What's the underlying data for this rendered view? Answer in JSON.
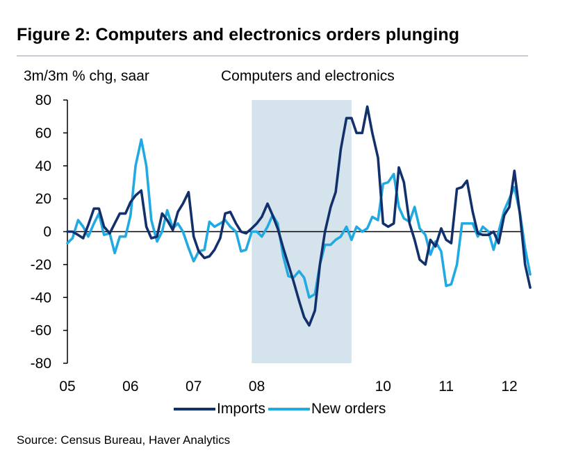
{
  "figure": {
    "title": "Figure 2: Computers and electronics orders plunging",
    "source": "Source: Census Bureau, Haver Analytics"
  },
  "chart_data": {
    "type": "line",
    "title": "Computers and electronics",
    "ylabel": "3m/3m % chg, saar",
    "xlabel": "",
    "ylim": [
      -80,
      80
    ],
    "yticks": [
      80,
      60,
      40,
      20,
      0,
      -20,
      -40,
      -60,
      -80
    ],
    "ytick_labels": [
      "80",
      "60",
      "40",
      "20",
      "0",
      "-20",
      "-40",
      "-60",
      "-80"
    ],
    "xlim": [
      2005.0,
      2012.0
    ],
    "xticks": [
      2005,
      2006,
      2007,
      2008,
      2009,
      2010,
      2011,
      2012
    ],
    "xtick_labels": [
      "05",
      "06",
      "07",
      "08",
      "",
      "10",
      "11",
      "12"
    ],
    "grid": false,
    "legend_position": "bottom-center",
    "shaded_regions": [
      {
        "x_start": 2007.92,
        "x_end": 2009.5,
        "color": "#d5e3ec"
      }
    ],
    "colors": {
      "Imports": "#12306b",
      "New orders": "#21a9e1",
      "shade": "#d5e3ec"
    },
    "series": [
      {
        "name": "Imports",
        "color": "#12306b",
        "points": [
          [
            2005.0,
            0
          ],
          [
            2005.08,
            0
          ],
          [
            2005.17,
            -2
          ],
          [
            2005.25,
            -4
          ],
          [
            2005.33,
            4
          ],
          [
            2005.42,
            14
          ],
          [
            2005.5,
            14
          ],
          [
            2005.58,
            3
          ],
          [
            2005.67,
            -1
          ],
          [
            2005.75,
            5
          ],
          [
            2005.83,
            11
          ],
          [
            2005.92,
            11
          ],
          [
            2006.0,
            18
          ],
          [
            2006.08,
            22
          ],
          [
            2006.17,
            25
          ],
          [
            2006.25,
            3
          ],
          [
            2006.33,
            -4
          ],
          [
            2006.42,
            -3
          ],
          [
            2006.5,
            11
          ],
          [
            2006.58,
            7
          ],
          [
            2006.67,
            1
          ],
          [
            2006.75,
            12
          ],
          [
            2006.83,
            17
          ],
          [
            2006.92,
            24
          ],
          [
            2007.0,
            -3
          ],
          [
            2007.08,
            -12
          ],
          [
            2007.17,
            -16
          ],
          [
            2007.25,
            -15
          ],
          [
            2007.33,
            -11
          ],
          [
            2007.42,
            -4
          ],
          [
            2007.5,
            11
          ],
          [
            2007.58,
            12
          ],
          [
            2007.67,
            5
          ],
          [
            2007.75,
            0
          ],
          [
            2007.83,
            -1
          ],
          [
            2007.92,
            2
          ],
          [
            2008.0,
            5
          ],
          [
            2008.08,
            9
          ],
          [
            2008.17,
            17
          ],
          [
            2008.25,
            10
          ],
          [
            2008.33,
            2
          ],
          [
            2008.42,
            -10
          ],
          [
            2008.5,
            -20
          ],
          [
            2008.58,
            -30
          ],
          [
            2008.67,
            -42
          ],
          [
            2008.75,
            -52
          ],
          [
            2008.83,
            -57
          ],
          [
            2008.92,
            -48
          ],
          [
            2009.0,
            -20
          ],
          [
            2009.08,
            0
          ],
          [
            2009.17,
            15
          ],
          [
            2009.25,
            24
          ],
          [
            2009.33,
            50
          ],
          [
            2009.42,
            69
          ],
          [
            2009.5,
            69
          ],
          [
            2009.58,
            60
          ],
          [
            2009.67,
            60
          ],
          [
            2009.75,
            76
          ],
          [
            2009.83,
            60
          ],
          [
            2009.92,
            45
          ],
          [
            2010.0,
            5
          ],
          [
            2010.08,
            3
          ],
          [
            2010.17,
            5
          ],
          [
            2010.25,
            39
          ],
          [
            2010.33,
            30
          ],
          [
            2010.42,
            5
          ],
          [
            2010.5,
            -5
          ],
          [
            2010.58,
            -17
          ],
          [
            2010.67,
            -20
          ],
          [
            2010.75,
            -5
          ],
          [
            2010.83,
            -9
          ],
          [
            2010.92,
            2
          ],
          [
            2011.0,
            -5
          ],
          [
            2011.08,
            -7
          ],
          [
            2011.17,
            26
          ],
          [
            2011.25,
            27
          ],
          [
            2011.33,
            31
          ],
          [
            2011.42,
            12
          ],
          [
            2011.5,
            -1
          ],
          [
            2011.58,
            -2
          ],
          [
            2011.67,
            -2
          ],
          [
            2011.75,
            0
          ],
          [
            2011.83,
            -7
          ],
          [
            2011.92,
            10
          ],
          [
            2012.0,
            15
          ],
          [
            2012.08,
            37
          ],
          [
            2012.17,
            10
          ],
          [
            2012.25,
            -20
          ],
          [
            2012.33,
            -34
          ]
        ]
      },
      {
        "name": "New orders",
        "color": "#21a9e1",
        "points": [
          [
            2005.0,
            -7
          ],
          [
            2005.08,
            -4
          ],
          [
            2005.17,
            7
          ],
          [
            2005.25,
            3
          ],
          [
            2005.33,
            -3
          ],
          [
            2005.42,
            5
          ],
          [
            2005.5,
            11
          ],
          [
            2005.58,
            -2
          ],
          [
            2005.67,
            -1
          ],
          [
            2005.75,
            -13
          ],
          [
            2005.83,
            -3
          ],
          [
            2005.92,
            -3
          ],
          [
            2006.0,
            10
          ],
          [
            2006.08,
            40
          ],
          [
            2006.17,
            56
          ],
          [
            2006.25,
            40
          ],
          [
            2006.33,
            7
          ],
          [
            2006.42,
            -6
          ],
          [
            2006.5,
            0
          ],
          [
            2006.58,
            13
          ],
          [
            2006.67,
            2
          ],
          [
            2006.75,
            5
          ],
          [
            2006.83,
            0
          ],
          [
            2006.92,
            -10
          ],
          [
            2007.0,
            -18
          ],
          [
            2007.08,
            -12
          ],
          [
            2007.17,
            -11
          ],
          [
            2007.25,
            6
          ],
          [
            2007.33,
            3
          ],
          [
            2007.42,
            5
          ],
          [
            2007.5,
            7
          ],
          [
            2007.58,
            3
          ],
          [
            2007.67,
            0
          ],
          [
            2007.75,
            -12
          ],
          [
            2007.83,
            -11
          ],
          [
            2007.92,
            0
          ],
          [
            2008.0,
            0
          ],
          [
            2008.08,
            -3
          ],
          [
            2008.17,
            3
          ],
          [
            2008.25,
            10
          ],
          [
            2008.33,
            5
          ],
          [
            2008.42,
            -15
          ],
          [
            2008.5,
            -27
          ],
          [
            2008.58,
            -28
          ],
          [
            2008.67,
            -24
          ],
          [
            2008.75,
            -28
          ],
          [
            2008.83,
            -40
          ],
          [
            2008.92,
            -38
          ],
          [
            2009.0,
            -20
          ],
          [
            2009.08,
            -8
          ],
          [
            2009.17,
            -8
          ],
          [
            2009.25,
            -5
          ],
          [
            2009.33,
            -3
          ],
          [
            2009.42,
            3
          ],
          [
            2009.5,
            -5
          ],
          [
            2009.58,
            3
          ],
          [
            2009.67,
            0
          ],
          [
            2009.75,
            2
          ],
          [
            2009.83,
            9
          ],
          [
            2009.92,
            7
          ],
          [
            2010.0,
            29
          ],
          [
            2010.08,
            30
          ],
          [
            2010.17,
            35
          ],
          [
            2010.25,
            15
          ],
          [
            2010.33,
            8
          ],
          [
            2010.42,
            6
          ],
          [
            2010.5,
            15
          ],
          [
            2010.58,
            2
          ],
          [
            2010.67,
            -2
          ],
          [
            2010.75,
            -14
          ],
          [
            2010.83,
            -6
          ],
          [
            2010.92,
            -12
          ],
          [
            2011.0,
            -33
          ],
          [
            2011.08,
            -32
          ],
          [
            2011.17,
            -20
          ],
          [
            2011.25,
            5
          ],
          [
            2011.33,
            5
          ],
          [
            2011.42,
            5
          ],
          [
            2011.5,
            -3
          ],
          [
            2011.58,
            3
          ],
          [
            2011.67,
            0
          ],
          [
            2011.75,
            -11
          ],
          [
            2011.83,
            0
          ],
          [
            2011.92,
            13
          ],
          [
            2012.0,
            20
          ],
          [
            2012.08,
            27
          ],
          [
            2012.17,
            11
          ],
          [
            2012.25,
            -10
          ],
          [
            2012.33,
            -26
          ]
        ]
      }
    ]
  }
}
